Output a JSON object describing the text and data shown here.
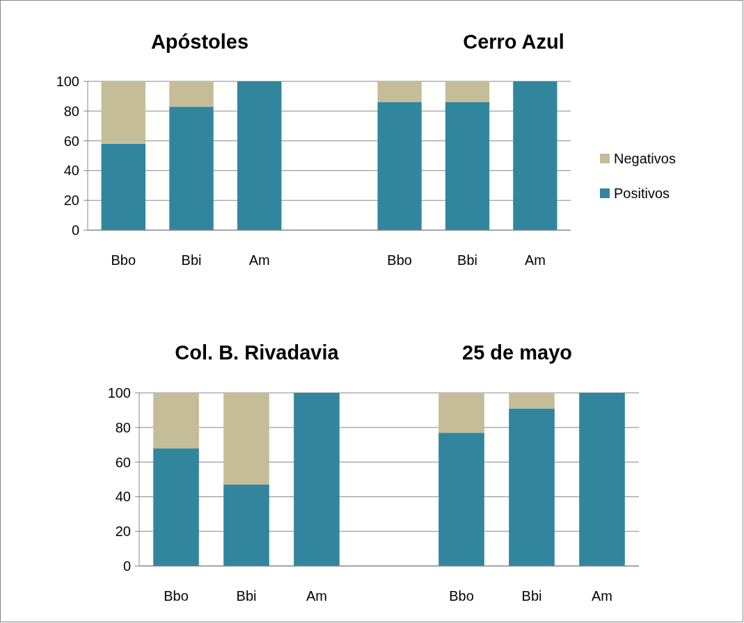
{
  "chart_data": [
    {
      "type": "bar",
      "title": "Apóstoles",
      "categories": [
        "Bbo",
        "Bbi",
        "Am"
      ],
      "stacked": true,
      "ylim": [
        0,
        100
      ],
      "yticks": [
        0,
        20,
        40,
        60,
        80,
        100
      ],
      "grid": "y",
      "series": [
        {
          "color": "#31869e",
          "values": [
            58,
            83,
            100
          ]
        },
        {
          "color": "#c4bd97",
          "values": [
            42,
            17,
            0
          ]
        }
      ]
    },
    {
      "type": "bar",
      "title": "Cerro Azul",
      "categories": [
        "Bbo",
        "Bbi",
        "Am"
      ],
      "stacked": true,
      "ylim": [
        0,
        100
      ],
      "yticks": [
        0,
        20,
        40,
        60,
        80,
        100
      ],
      "grid": "y",
      "tick_labels": "x",
      "legend": "right",
      "series": [
        {
          "name": "Positivos",
          "color": "#31869e",
          "values": [
            86,
            86,
            100
          ]
        },
        {
          "name": "Negativos",
          "color": "#c4bd97",
          "values": [
            14,
            14,
            0
          ]
        }
      ]
    },
    {
      "type": "bar",
      "title": "Col. B. Rivadavia",
      "categories": [
        "Bbo",
        "Bbi",
        "Am"
      ],
      "stacked": true,
      "ylim": [
        0,
        100
      ],
      "yticks": [
        0,
        20,
        40,
        60,
        80,
        100
      ],
      "grid": "y",
      "series": [
        {
          "color": "#31869e",
          "values": [
            68,
            47,
            100
          ]
        },
        {
          "color": "#c4bd97",
          "values": [
            32,
            53,
            0
          ]
        }
      ]
    },
    {
      "type": "bar",
      "title": "25 de mayo",
      "categories": [
        "Bbo",
        "Bbi",
        "Am"
      ],
      "stacked": true,
      "ylim": [
        0,
        100
      ],
      "yticks": [
        0,
        20,
        40,
        60,
        80,
        100
      ],
      "grid": "y",
      "tick_labels": "x",
      "series": [
        {
          "color": "#31869e",
          "values": [
            77,
            91,
            100
          ]
        },
        {
          "color": "#c4bd97",
          "values": [
            23,
            9,
            0
          ]
        }
      ]
    }
  ]
}
